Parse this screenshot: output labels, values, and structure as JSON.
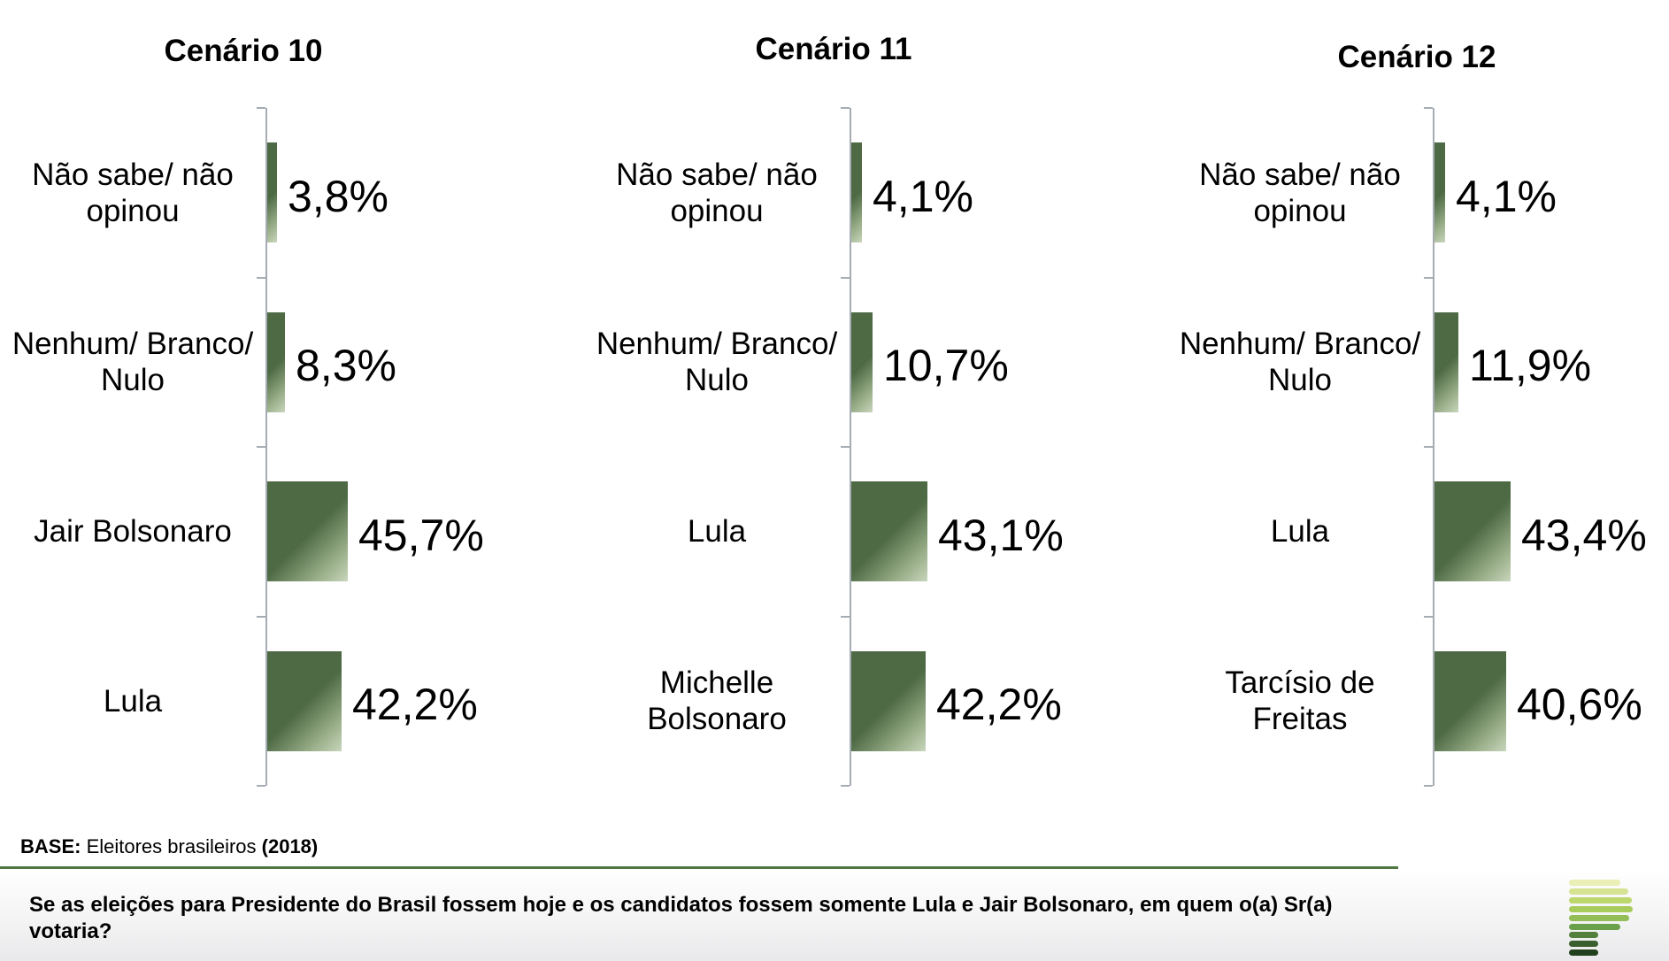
{
  "chart_data": [
    {
      "type": "bar",
      "orientation": "horizontal",
      "title": "Cenário 10",
      "categories": [
        "Não sabe/ não opinou",
        "Nenhum/ Branco/ Nulo",
        "Jair Bolsonaro",
        "Lula"
      ],
      "values": [
        3.8,
        8.3,
        45.7,
        42.2
      ],
      "value_labels": [
        "3,8%",
        "8,3%",
        "45,7%",
        "42,2%"
      ],
      "xlim": [
        0,
        100
      ],
      "grid": false,
      "legend": false
    },
    {
      "type": "bar",
      "orientation": "horizontal",
      "title": "Cenário 11",
      "categories": [
        "Não sabe/ não opinou",
        "Nenhum/ Branco/ Nulo",
        "Lula",
        "Michelle Bolsonaro"
      ],
      "values": [
        4.1,
        10.7,
        43.1,
        42.2
      ],
      "value_labels": [
        "4,1%",
        "10,7%",
        "43,1%",
        "42,2%"
      ],
      "xlim": [
        0,
        100
      ],
      "grid": false,
      "legend": false
    },
    {
      "type": "bar",
      "orientation": "horizontal",
      "title": "Cenário 12",
      "categories": [
        "Não sabe/ não opinou",
        "Nenhum/ Branco/ Nulo",
        "Lula",
        "Tarcísio de Freitas"
      ],
      "values": [
        4.1,
        11.9,
        43.4,
        40.6
      ],
      "value_labels": [
        "4,1%",
        "11,9%",
        "43,4%",
        "40,6%"
      ],
      "xlim": [
        0,
        100
      ],
      "grid": false,
      "legend": false
    }
  ],
  "footer": {
    "base_label": "BASE:",
    "base_text": " Eleitores brasileiros ",
    "base_year": "(2018)",
    "question_lines": [
      "Se as eleições para Presidente do Brasil fossem hoje e os candidatos fossem somente Lula e Jair Bolsonaro, em quem o(a) Sr(a)",
      "votaria?"
    ]
  },
  "colors": {
    "bar_dark": "#4d6a44",
    "bar_mid": "#9bb08b",
    "bar_light": "#c9d6bd",
    "axis": "#a6acb4",
    "divider_green": "#4e7742",
    "text": "#000000"
  },
  "logo": {
    "bars": [
      {
        "w": 58,
        "color": "#e9efb5"
      },
      {
        "w": 67,
        "color": "#d5e392"
      },
      {
        "w": 71,
        "color": "#bcd76c"
      },
      {
        "w": 72,
        "color": "#a8cc5c"
      },
      {
        "w": 68,
        "color": "#93bd55"
      },
      {
        "w": 58,
        "color": "#6ba04b"
      },
      {
        "w": 33,
        "color": "#53803d"
      },
      {
        "w": 33,
        "color": "#3b5e2e"
      },
      {
        "w": 33,
        "color": "#21411d"
      }
    ]
  }
}
